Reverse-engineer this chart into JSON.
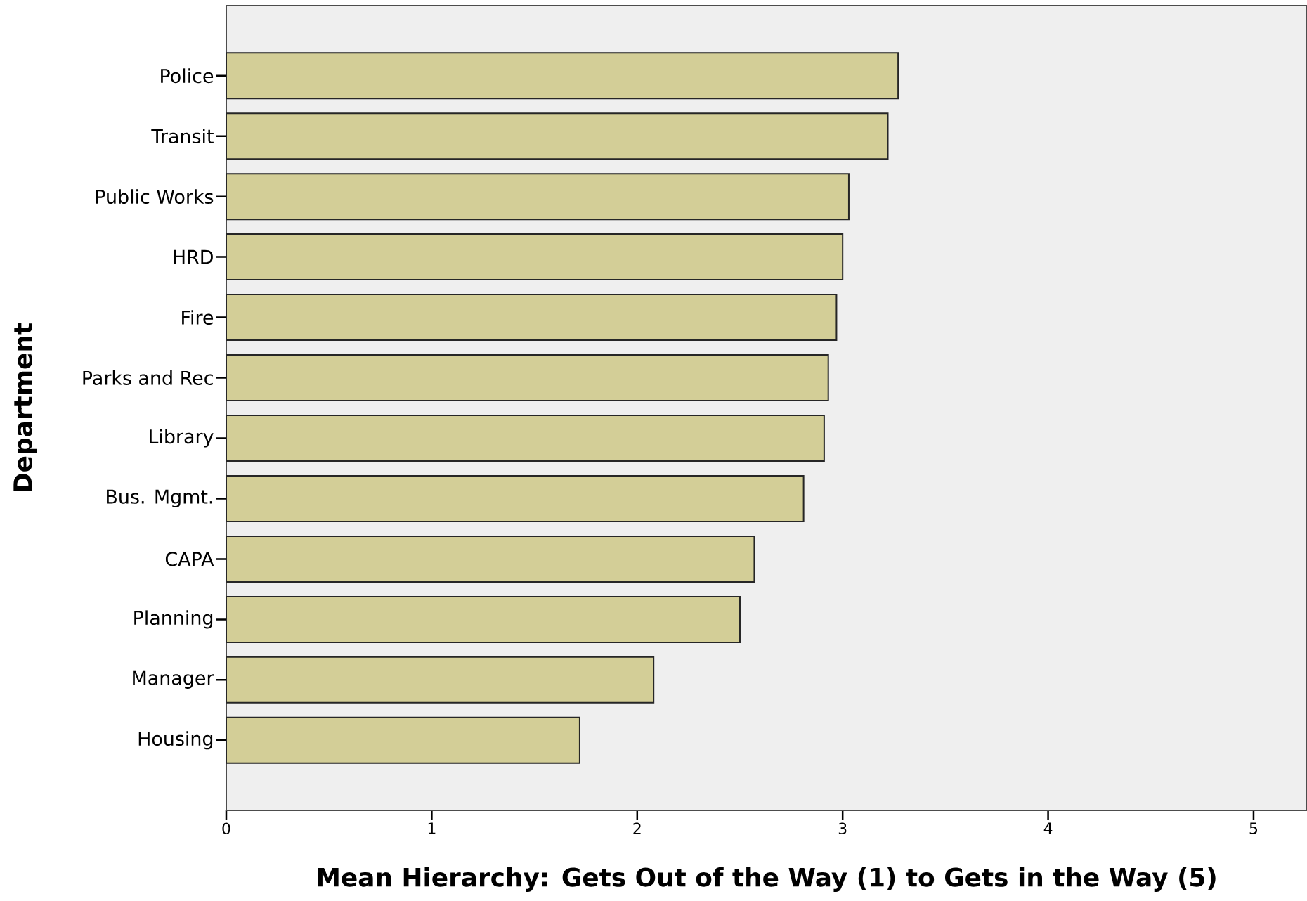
{
  "chart_data": {
    "type": "bar",
    "orientation": "horizontal",
    "categories": [
      "Police",
      "Transit",
      "Public Works",
      "HRD",
      "Fire",
      "Parks and Rec",
      "Library",
      "Bus. Mgmt.",
      "CAPA",
      "Planning",
      "Manager",
      "Housing"
    ],
    "values": [
      3.27,
      3.22,
      3.03,
      3.0,
      2.97,
      2.93,
      2.91,
      2.81,
      2.57,
      2.5,
      2.08,
      1.72
    ],
    "color": "#d3ce97",
    "xlim": [
      0,
      5.26
    ],
    "xticks": [
      0,
      1,
      2,
      3,
      4,
      5
    ],
    "xlabel": "Mean Hierarchy: Gets Out of the Way (1) to Gets in the Way (5)",
    "ylabel": "Department"
  }
}
